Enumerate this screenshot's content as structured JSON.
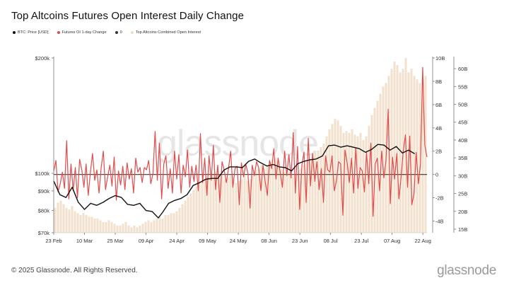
{
  "title": "Top Altcoins Futures Open Interest Daily Change",
  "legend": [
    {
      "label": "BTC: Price [USD]",
      "color": "#111111"
    },
    {
      "label": "Futures OI 1-day Change",
      "color": "#e24b4b"
    },
    {
      "label": "0",
      "color": "#333333"
    },
    {
      "label": "Top Altcoins Combined Open Interest",
      "color": "#eedcc4"
    }
  ],
  "watermark": "glassnode",
  "footer": "© 2025 Glassnode. All Rights Reserved.",
  "brand": "glassnode",
  "colors": {
    "price": "#111111",
    "oi_change": "#e24b4b",
    "zero": "#333333",
    "combined_oi": "#eedcc4"
  },
  "chart_data": {
    "type": "line",
    "x_start": "2025-02-23",
    "x_end": "2025-08-24",
    "x_ticks": [
      "23 Feb",
      "10 Mar",
      "25 Mar",
      "09 Apr",
      "24 Apr",
      "09 May",
      "24 May",
      "08 Jun",
      "23 Jun",
      "08 Jul",
      "23 Jul",
      "07 Aug",
      "22 Aug"
    ],
    "y_left": {
      "scale": "log",
      "range": [
        70000,
        200000
      ],
      "ticks": [
        "$70k",
        "$80k",
        "$90k",
        "$100k",
        "$200k"
      ]
    },
    "y_right_inner": {
      "range": [
        -5000000000,
        10000000000
      ],
      "ticks": [
        "-4B",
        "-2B",
        "0",
        "2B",
        "4B",
        "6B",
        "8B",
        "10B"
      ]
    },
    "y_right_outer": {
      "range": [
        14000000000,
        63000000000
      ],
      "ticks": [
        "15B",
        "20B",
        "25B",
        "30B",
        "35B",
        "40B",
        "45B",
        "50B",
        "55B",
        "60B"
      ]
    },
    "series": [
      {
        "name": "BTC: Price [USD]",
        "axis": "left",
        "points": [
          [
            0,
            95500
          ],
          [
            3,
            88000
          ],
          [
            6,
            86500
          ],
          [
            9,
            92000
          ],
          [
            12,
            84000
          ],
          [
            15,
            80500
          ],
          [
            18,
            83500
          ],
          [
            21,
            82500
          ],
          [
            24,
            84000
          ],
          [
            27,
            86000
          ],
          [
            30,
            87500
          ],
          [
            33,
            86500
          ],
          [
            36,
            83000
          ],
          [
            39,
            82500
          ],
          [
            42,
            83500
          ],
          [
            45,
            80000
          ],
          [
            48,
            79500
          ],
          [
            51,
            76500
          ],
          [
            53,
            79000
          ],
          [
            56,
            83500
          ],
          [
            59,
            85000
          ],
          [
            62,
            86000
          ],
          [
            65,
            88000
          ],
          [
            68,
            93000
          ],
          [
            71,
            94500
          ],
          [
            74,
            96500
          ],
          [
            77,
            97000
          ],
          [
            80,
            97000
          ],
          [
            83,
            102000
          ],
          [
            86,
            104000
          ],
          [
            89,
            104000
          ],
          [
            92,
            103500
          ],
          [
            95,
            107500
          ],
          [
            98,
            109000
          ],
          [
            101,
            106500
          ],
          [
            104,
            104500
          ],
          [
            107,
            105500
          ],
          [
            110,
            104000
          ],
          [
            113,
            103500
          ],
          [
            116,
            101500
          ],
          [
            119,
            106000
          ],
          [
            122,
            107500
          ],
          [
            125,
            108500
          ],
          [
            128,
            109000
          ],
          [
            131,
            111000
          ],
          [
            134,
            118000
          ],
          [
            137,
            118500
          ],
          [
            140,
            117000
          ],
          [
            143,
            118000
          ],
          [
            146,
            117000
          ],
          [
            149,
            116000
          ],
          [
            152,
            113500
          ],
          [
            155,
            115500
          ],
          [
            158,
            119000
          ],
          [
            161,
            118500
          ],
          [
            164,
            115000
          ],
          [
            167,
            117500
          ],
          [
            170,
            113000
          ],
          [
            173,
            115000
          ],
          [
            176,
            112500
          ]
        ]
      },
      {
        "name": "Futures OI 1-day Change",
        "axis": "right_inner",
        "values": [
          0.3,
          1.2,
          -1.5,
          -0.8,
          0.2,
          -1.2,
          2.9,
          -2.1,
          0.9,
          -1.4,
          0.6,
          -2.0,
          1.3,
          0.4,
          -1.1,
          0.9,
          -1.8,
          0.2,
          1.8,
          -0.5,
          0.4,
          -1.6,
          0.6,
          2.0,
          -1.3,
          -0.2,
          0.8,
          -1.0,
          1.5,
          -2.2,
          0.3,
          -0.9,
          0.7,
          -1.3,
          1.0,
          -0.4,
          0.5,
          -1.6,
          1.4,
          0.2,
          0.6,
          -0.7,
          0.6,
          0.4,
          1.2,
          -0.8,
          0.1,
          3.7,
          -0.5,
          2.7,
          -2.1,
          0.9,
          1.6,
          -1.2,
          0.5,
          -1.6,
          2.0,
          -0.4,
          1.7,
          -1.6,
          0.8,
          -0.2,
          2.1,
          -1.1,
          0.7,
          -0.6,
          0.8,
          -1.4,
          3.5,
          -0.7,
          1.4,
          -1.8,
          1.6,
          -0.5,
          2.5,
          -1.3,
          0.8,
          -2.4,
          1.1,
          0.4,
          -0.7,
          0.5,
          2.0,
          -1.1,
          0.5,
          0.7,
          -2.6,
          1.0,
          -0.2,
          0.9,
          0.1,
          -2.9,
          0.8,
          -0.1,
          1.1,
          0.6,
          -1.4,
          0.8,
          -0.6,
          -1.8,
          1.2,
          0.5,
          2.2,
          -0.4,
          1.4,
          0.1,
          -1.1,
          2.0,
          -0.1,
          1.7,
          -0.3,
          3.6,
          -1.6,
          2.4,
          -3.0,
          0.8,
          1.9,
          -2.4,
          3.1,
          -1.0,
          1.8,
          -0.6,
          1.1,
          -1.3,
          0.5,
          -2.4,
          1.6,
          0.4,
          0.2,
          1.6,
          -1.4,
          -0.6,
          1.1,
          0.9,
          -3.5,
          2.1,
          1.0,
          -0.7,
          1.4,
          -1.6,
          2.3,
          -1.2,
          0.6,
          0.3,
          -1.5,
          1.9,
          -0.8,
          2.7,
          -3.6,
          0.9,
          1.4,
          -1.4,
          2.0,
          -0.3,
          1.2,
          5.6,
          -2.5,
          1.5,
          -0.4,
          1.8,
          -2.1,
          -0.2,
          2.0,
          3.4,
          -1.1,
          3.3,
          -2.6,
          -1.6,
          1.9,
          -0.8,
          0.9,
          9.2,
          2.5,
          1.5
        ]
      },
      {
        "name": "Top Altcoins Combined Open Interest",
        "axis": "right_outer",
        "values": [
          21,
          22.5,
          23,
          22,
          21,
          20.5,
          21.5,
          20,
          19.5,
          19,
          19.5,
          19,
          18.5,
          18.5,
          18,
          18,
          17.5,
          17,
          17,
          17.5,
          17,
          16.5,
          16,
          16,
          16.5,
          17,
          16,
          15.5,
          16,
          15.5,
          16,
          16.5,
          17,
          17.5,
          17,
          17.5,
          18,
          18.5,
          18,
          19,
          19,
          19.5,
          19.5,
          20,
          21,
          22,
          23,
          24,
          25,
          26,
          27,
          28,
          28.5,
          29,
          29.5,
          30,
          30.5,
          31,
          30.5,
          30,
          29,
          29.5,
          30,
          29,
          28,
          28.5,
          29,
          30,
          28.5,
          29,
          30,
          31.5,
          32,
          33,
          32,
          33,
          34,
          34.5,
          35,
          34,
          32,
          31,
          32,
          31,
          30,
          30.5,
          31,
          32,
          33,
          34,
          35,
          36,
          36.5,
          37,
          38,
          39,
          41,
          43,
          44.5,
          46,
          45.5,
          44,
          42,
          42.5,
          42,
          43,
          41.5,
          41,
          42,
          40,
          41,
          44,
          47,
          49,
          51,
          53,
          55,
          56,
          58,
          60,
          62,
          61,
          59,
          60,
          63,
          59,
          60,
          58,
          57,
          56,
          57,
          58
        ]
      }
    ]
  }
}
